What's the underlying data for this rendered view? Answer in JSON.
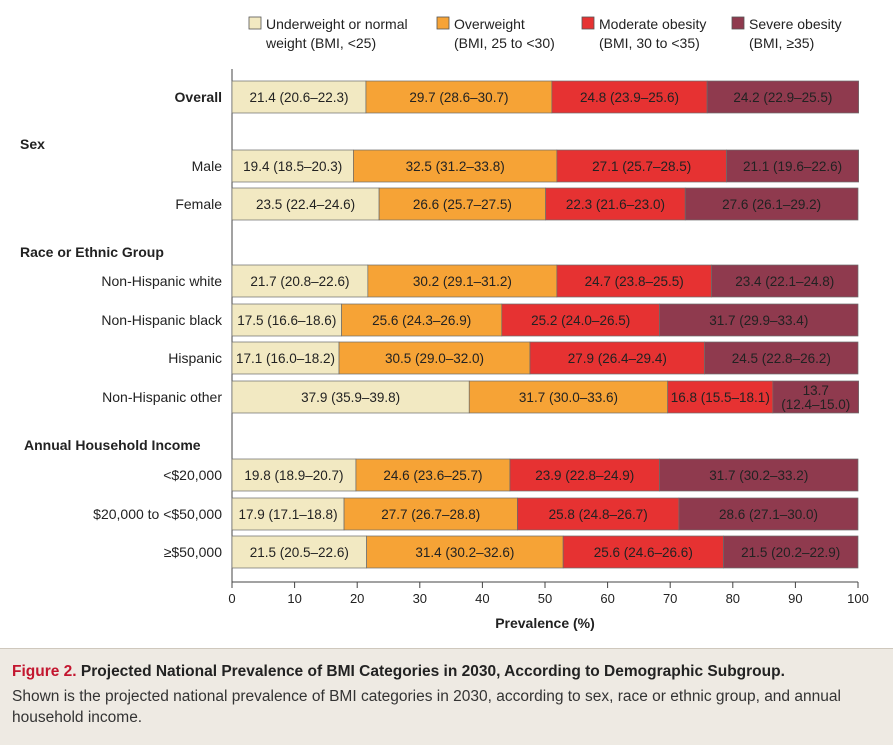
{
  "chart_data": {
    "type": "bar",
    "orientation": "horizontal",
    "stacked": true,
    "xlabel": "Prevalence (%)",
    "xlim": [
      0,
      100
    ],
    "xticks": [
      "0",
      "10",
      "20",
      "30",
      "40",
      "50",
      "60",
      "70",
      "80",
      "90",
      "100"
    ],
    "legend_position": "top",
    "legend": [
      {
        "line1": "Underweight or normal",
        "line2": "weight (BMI, <25)",
        "color": "#f2e9c2"
      },
      {
        "line1": "Overweight",
        "line2": "(BMI, 25 to <30)",
        "color": "#f6a336"
      },
      {
        "line1": "Moderate obesity",
        "line2": "(BMI, 30 to <35)",
        "color": "#e63232"
      },
      {
        "line1": "Severe obesity",
        "line2": "(BMI, ≥35)",
        "color": "#8f3a4e"
      }
    ],
    "rows": [
      {
        "group": "",
        "label": "Overall",
        "bold": true,
        "values": [
          21.4,
          29.7,
          24.8,
          24.2
        ],
        "labels": [
          "21.4 (20.6–22.3)",
          "29.7 (28.6–30.7)",
          "24.8 (23.9–25.6)",
          "24.2 (22.9–25.5)"
        ]
      },
      {
        "group": "Sex",
        "label": "Male",
        "values": [
          19.4,
          32.5,
          27.1,
          21.1
        ],
        "labels": [
          "19.4 (18.5–20.3)",
          "32.5 (31.2–33.8)",
          "27.1 (25.7–28.5)",
          "21.1 (19.6–22.6)"
        ]
      },
      {
        "group": "Sex",
        "label": "Female",
        "values": [
          23.5,
          26.6,
          22.3,
          27.6
        ],
        "labels": [
          "23.5 (22.4–24.6)",
          "26.6 (25.7–27.5)",
          "22.3 (21.6–23.0)",
          "27.6 (26.1–29.2)"
        ]
      },
      {
        "group": "Race or Ethnic Group",
        "label": "Non-Hispanic white",
        "values": [
          21.7,
          30.2,
          24.7,
          23.4
        ],
        "labels": [
          "21.7 (20.8–22.6)",
          "30.2 (29.1–31.2)",
          "24.7 (23.8–25.5)",
          "23.4 (22.1–24.8)"
        ]
      },
      {
        "group": "Race or Ethnic Group",
        "label": "Non-Hispanic black",
        "values": [
          17.5,
          25.6,
          25.2,
          31.7
        ],
        "labels": [
          "17.5 (16.6–18.6)",
          "25.6 (24.3–26.9)",
          "25.2 (24.0–26.5)",
          "31.7 (29.9–33.4)"
        ]
      },
      {
        "group": "Race or Ethnic Group",
        "label": "Hispanic",
        "values": [
          17.1,
          30.5,
          27.9,
          24.5
        ],
        "labels": [
          "17.1 (16.0–18.2)",
          "30.5 (29.0–32.0)",
          "27.9 (26.4–29.4)",
          "24.5 (22.8–26.2)"
        ]
      },
      {
        "group": "Race or Ethnic Group",
        "label": "Non-Hispanic other",
        "values": [
          37.9,
          31.7,
          16.8,
          13.7
        ],
        "labels": [
          "37.9 (35.9–39.8)",
          "31.7 (30.0–33.6)",
          "16.8 (15.5–18.1)",
          "13.7 (12.4–15.0)"
        ]
      },
      {
        "group": "Annual Household Income",
        "label": "<$20,000",
        "values": [
          19.8,
          24.6,
          23.9,
          31.7
        ],
        "labels": [
          "19.8 (18.9–20.7)",
          "24.6 (23.6–25.7)",
          "23.9 (22.8–24.9)",
          "31.7 (30.2–33.2)"
        ]
      },
      {
        "group": "Annual Household Income",
        "label": "$20,000 to <$50,000",
        "values": [
          17.9,
          27.7,
          25.8,
          28.6
        ],
        "labels": [
          "17.9 (17.1–18.8)",
          "27.7 (26.7–28.8)",
          "25.8 (24.8–26.7)",
          "28.6 (27.1–30.0)"
        ]
      },
      {
        "group": "Annual Household Income",
        "label": "≥$50,000",
        "values": [
          21.5,
          31.4,
          25.6,
          21.5
        ],
        "labels": [
          "21.5 (20.5–22.6)",
          "31.4 (30.2–32.6)",
          "25.6 (24.6–26.6)",
          "21.5 (20.2–22.9)"
        ]
      }
    ]
  },
  "caption": {
    "label": "Figure 2.",
    "title": "Projected National Prevalence of BMI Categories in 2030, According to Demographic Subgroup.",
    "text": "Shown is the projected national prevalence of BMI categories in 2030, according to sex, race or ethnic group, and annual household income."
  }
}
